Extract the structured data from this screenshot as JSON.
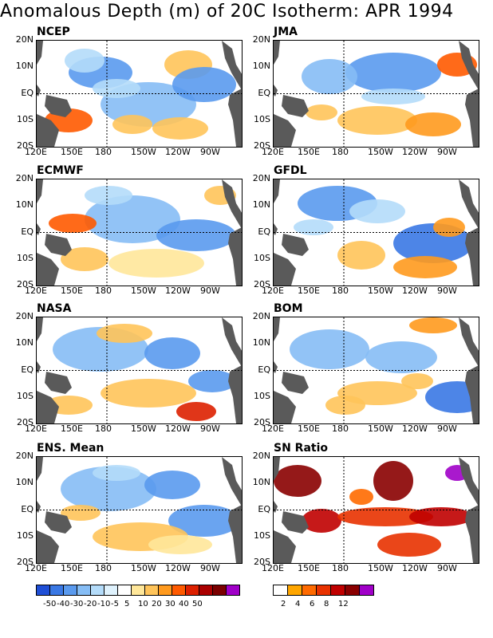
{
  "title": "Anomalous Depth (m) of 20C Isotherm: APR 1994",
  "panels": [
    {
      "label": "NCEP"
    },
    {
      "label": "JMA"
    },
    {
      "label": "ECMWF"
    },
    {
      "label": "GFDL"
    },
    {
      "label": "NASA"
    },
    {
      "label": "BOM"
    },
    {
      "label": "ENS. Mean"
    },
    {
      "label": "SN Ratio"
    }
  ],
  "lat_labels": [
    "20N",
    "10N",
    "EQ",
    "10S",
    "20S"
  ],
  "lon_labels": [
    "120E",
    "150E",
    "180",
    "150W",
    "120W",
    "90W"
  ],
  "depth_colorbar": {
    "colors": [
      "#1f4fd6",
      "#3a78e4",
      "#5a9aee",
      "#86bdf5",
      "#b4dcfa",
      "#dff2fd",
      "#ffffff",
      "#ffe79a",
      "#ffc45a",
      "#ff9a1e",
      "#ff5a00",
      "#dd2000",
      "#aa0000",
      "#7a0000",
      "#a000c8"
    ],
    "labels": [
      "-50",
      "-40",
      "-30",
      "-20",
      "-10",
      "-5",
      "5",
      "10",
      "20",
      "30",
      "40",
      "50"
    ]
  },
  "sn_colorbar": {
    "colors": [
      "#ffffff",
      "#ffa600",
      "#ff6a00",
      "#e83200",
      "#c00000",
      "#8a0000",
      "#a000c8"
    ],
    "labels": [
      "2",
      "4",
      "6",
      "8",
      "12"
    ]
  },
  "colors": {
    "land": "#5a5a5a",
    "grid_line": "#000000"
  }
}
